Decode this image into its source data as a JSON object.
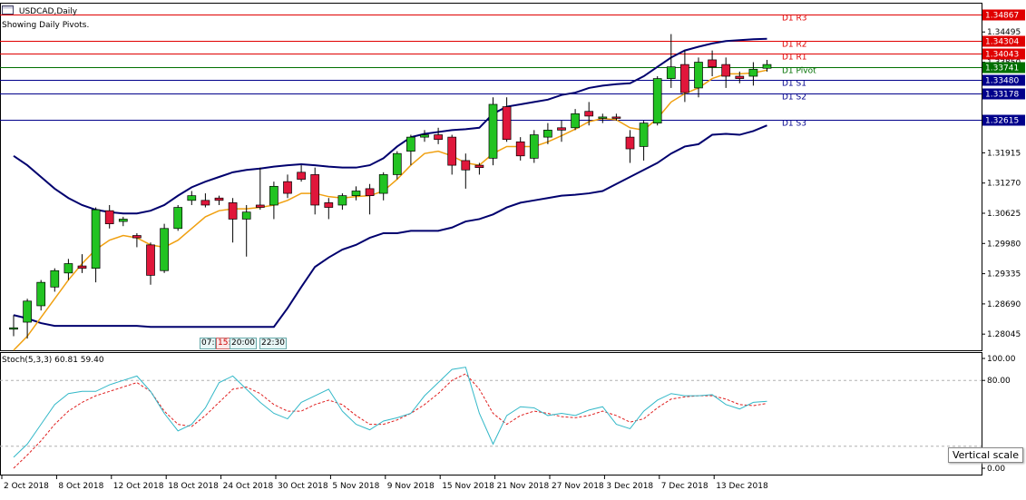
{
  "window": {
    "title": "USDCAD,Daily",
    "subtitle": "Showing Daily Pivots.",
    "icon": "chart-window-icon"
  },
  "stochastic": {
    "label": "Stoch(5,3,3) 60.81 59.40",
    "ticks": [
      "100.00",
      "80.00",
      "0.00"
    ],
    "levels": [
      80,
      20
    ]
  },
  "tooltip": {
    "vertical_scale": "Vertical scale"
  },
  "time_boxes": [
    "07:",
    "15:",
    "20:00",
    "22:30"
  ],
  "pivots": [
    {
      "label": "D1 R3",
      "value": 1.34867,
      "price_label": "1.34867",
      "color": "#e00000"
    },
    {
      "label": "D1 R2",
      "value": 1.34304,
      "price_label": "1.34304",
      "color": "#e00000"
    },
    {
      "label": "D1 R1",
      "value": 1.34043,
      "price_label": "1.34043",
      "color": "#e00000"
    },
    {
      "label": "D1 Pivot",
      "value": 1.33741,
      "price_label": "1.33741",
      "color": "#007000"
    },
    {
      "label": "D1 S1",
      "value": 1.3348,
      "price_label": "1.33480",
      "color": "#00008b"
    },
    {
      "label": "D1 S2",
      "value": 1.33178,
      "price_label": "1.33178",
      "color": "#00008b"
    },
    {
      "label": "D1 S3",
      "value": 1.32615,
      "price_label": "1.32615",
      "color": "#00008b"
    }
  ],
  "colors": {
    "bull": "#22c322",
    "bear": "#e0173b",
    "band": "#00006e",
    "ma": "#f0a010",
    "stoch_main": "#33b8c8",
    "stoch_signal": "#e02020"
  },
  "chart_data": [
    {
      "type": "candlestick",
      "title": "USDCAD,Daily",
      "ylim": [
        1.277,
        1.351
      ],
      "y_ticks": [
        "1.34495",
        "1.33850",
        "1.33205",
        "1.32560",
        "1.31915",
        "1.31270",
        "1.30625",
        "1.29980",
        "1.29335",
        "1.28690",
        "1.28045"
      ],
      "x_ticks": [
        "2 Oct 2018",
        "8 Oct 2018",
        "12 Oct 2018",
        "18 Oct 2018",
        "24 Oct 2018",
        "30 Oct 2018",
        "5 Nov 2018",
        "9 Nov 2018",
        "15 Nov 2018",
        "21 Nov 2018",
        "27 Nov 2018",
        "3 Dec 2018",
        "7 Dec 2018",
        "13 Dec 2018"
      ],
      "x_tick_index": [
        0,
        4,
        8,
        12,
        16,
        20,
        24,
        28,
        32,
        36,
        40,
        44,
        48,
        52
      ],
      "ohlc": [
        [
          1.2815,
          1.2845,
          1.28,
          1.2818
        ],
        [
          1.283,
          1.288,
          1.2795,
          1.2875
        ],
        [
          1.2865,
          1.292,
          1.2855,
          1.2915
        ],
        [
          1.2905,
          1.2945,
          1.2895,
          1.294
        ],
        [
          1.2935,
          1.2965,
          1.292,
          1.2955
        ],
        [
          1.295,
          1.2975,
          1.2935,
          1.2945
        ],
        [
          1.2945,
          1.3075,
          1.2915,
          1.307
        ],
        [
          1.3068,
          1.308,
          1.303,
          1.304
        ],
        [
          1.3045,
          1.3055,
          1.3035,
          1.305
        ],
        [
          1.3015,
          1.302,
          1.299,
          1.301
        ],
        [
          1.2995,
          1.3,
          1.291,
          1.293
        ],
        [
          1.294,
          1.304,
          1.2935,
          1.303
        ],
        [
          1.303,
          1.308,
          1.3025,
          1.3075
        ],
        [
          1.309,
          1.311,
          1.308,
          1.31
        ],
        [
          1.309,
          1.3105,
          1.3075,
          1.308
        ],
        [
          1.3095,
          1.31,
          1.308,
          1.309
        ],
        [
          1.3085,
          1.3095,
          1.3,
          1.305
        ],
        [
          1.305,
          1.308,
          1.297,
          1.3065
        ],
        [
          1.308,
          1.316,
          1.307,
          1.3075
        ],
        [
          1.308,
          1.313,
          1.305,
          1.312
        ],
        [
          1.313,
          1.3145,
          1.3095,
          1.3105
        ],
        [
          1.315,
          1.3165,
          1.313,
          1.3135
        ],
        [
          1.3145,
          1.316,
          1.306,
          1.308
        ],
        [
          1.3085,
          1.3095,
          1.305,
          1.3075
        ],
        [
          1.308,
          1.3105,
          1.307,
          1.31
        ],
        [
          1.31,
          1.312,
          1.309,
          1.311
        ],
        [
          1.3115,
          1.3125,
          1.306,
          1.31
        ],
        [
          1.3105,
          1.315,
          1.309,
          1.3145
        ],
        [
          1.3145,
          1.3195,
          1.3135,
          1.319
        ],
        [
          1.3195,
          1.323,
          1.3165,
          1.3225
        ],
        [
          1.3225,
          1.324,
          1.3215,
          1.323
        ],
        [
          1.323,
          1.3245,
          1.321,
          1.322
        ],
        [
          1.3225,
          1.323,
          1.3145,
          1.3165
        ],
        [
          1.3175,
          1.319,
          1.3115,
          1.3155
        ],
        [
          1.3165,
          1.317,
          1.3145,
          1.316
        ],
        [
          1.318,
          1.331,
          1.3165,
          1.3295
        ],
        [
          1.329,
          1.331,
          1.3215,
          1.322
        ],
        [
          1.3215,
          1.3225,
          1.3175,
          1.3185
        ],
        [
          1.318,
          1.324,
          1.317,
          1.323
        ],
        [
          1.3225,
          1.3255,
          1.321,
          1.324
        ],
        [
          1.3245,
          1.326,
          1.3215,
          1.324
        ],
        [
          1.3245,
          1.3285,
          1.324,
          1.3275
        ],
        [
          1.328,
          1.33,
          1.325,
          1.327
        ],
        [
          1.3265,
          1.3275,
          1.3255,
          1.3268
        ],
        [
          1.3268,
          1.3275,
          1.326,
          1.3265
        ],
        [
          1.3225,
          1.324,
          1.317,
          1.32
        ],
        [
          1.3205,
          1.326,
          1.3175,
          1.3255
        ],
        [
          1.3255,
          1.3355,
          1.325,
          1.335
        ],
        [
          1.335,
          1.3445,
          1.333,
          1.3375
        ],
        [
          1.338,
          1.341,
          1.33,
          1.332
        ],
        [
          1.333,
          1.3395,
          1.331,
          1.3385
        ],
        [
          1.339,
          1.341,
          1.3355,
          1.3375
        ],
        [
          1.338,
          1.3395,
          1.333,
          1.3355
        ],
        [
          1.3355,
          1.3365,
          1.334,
          1.335
        ],
        [
          1.3355,
          1.3385,
          1.3335,
          1.337
        ],
        [
          1.3372,
          1.339,
          1.3365,
          1.338
        ]
      ],
      "ma": [
        1.276,
        1.28,
        1.284,
        1.288,
        1.292,
        1.2955,
        1.2985,
        1.3005,
        1.3015,
        1.301,
        1.2995,
        1.299,
        1.3005,
        1.303,
        1.3055,
        1.3068,
        1.3072,
        1.3072,
        1.3075,
        1.308,
        1.309,
        1.3105,
        1.3105,
        1.3098,
        1.3095,
        1.3098,
        1.31,
        1.311,
        1.3135,
        1.3165,
        1.319,
        1.3195,
        1.3185,
        1.317,
        1.3165,
        1.319,
        1.3205,
        1.3205,
        1.3205,
        1.3215,
        1.3228,
        1.3242,
        1.3258,
        1.3265,
        1.3262,
        1.3245,
        1.324,
        1.3265,
        1.33,
        1.3318,
        1.333,
        1.335,
        1.336,
        1.336,
        1.3362,
        1.3368
      ],
      "upper_band": [
        1.3185,
        1.3165,
        1.314,
        1.3115,
        1.3095,
        1.308,
        1.307,
        1.3065,
        1.3062,
        1.3062,
        1.3068,
        1.308,
        1.31,
        1.3118,
        1.313,
        1.314,
        1.315,
        1.3155,
        1.3158,
        1.3162,
        1.3165,
        1.3167,
        1.3165,
        1.3162,
        1.316,
        1.316,
        1.3165,
        1.318,
        1.3205,
        1.3225,
        1.3232,
        1.3236,
        1.324,
        1.3242,
        1.3245,
        1.3275,
        1.329,
        1.3295,
        1.33,
        1.3305,
        1.3315,
        1.332,
        1.333,
        1.3335,
        1.3338,
        1.334,
        1.3355,
        1.3375,
        1.3395,
        1.341,
        1.3418,
        1.3425,
        1.343,
        1.3432,
        1.3434,
        1.3435
      ],
      "lower_band": [
        1.2845,
        1.2838,
        1.2828,
        1.2822,
        1.2822,
        1.2822,
        1.2822,
        1.2822,
        1.2822,
        1.2822,
        1.282,
        1.282,
        1.282,
        1.282,
        1.282,
        1.282,
        1.282,
        1.282,
        1.282,
        1.282,
        1.286,
        1.2905,
        1.2948,
        1.2968,
        1.2985,
        1.2995,
        1.301,
        1.302,
        1.302,
        1.3025,
        1.3025,
        1.3025,
        1.3032,
        1.3045,
        1.305,
        1.306,
        1.3075,
        1.3085,
        1.309,
        1.3095,
        1.31,
        1.3102,
        1.3105,
        1.311,
        1.3125,
        1.314,
        1.3155,
        1.317,
        1.319,
        1.3205,
        1.321,
        1.323,
        1.3232,
        1.323,
        1.3238,
        1.325
      ],
      "x_label_index_origin": 0
    },
    {
      "type": "line",
      "title": "Stoch(5,3,3) 60.81 59.40",
      "ylim": [
        0,
        100
      ],
      "series": [
        {
          "name": "main",
          "values": [
            10,
            22,
            40,
            58,
            68,
            70,
            70,
            76,
            80,
            84,
            70,
            50,
            34,
            40,
            55,
            78,
            84,
            72,
            60,
            50,
            45,
            60,
            66,
            72,
            52,
            40,
            35,
            43,
            46,
            50,
            66,
            78,
            90,
            92,
            50,
            22,
            48,
            56,
            55,
            48,
            50,
            48,
            53,
            56,
            40,
            36,
            52,
            62,
            68,
            66,
            66,
            67,
            58,
            54,
            60,
            61
          ]
        },
        {
          "name": "signal",
          "values": [
            0,
            12,
            25,
            40,
            52,
            60,
            66,
            70,
            74,
            78,
            70,
            52,
            40,
            38,
            48,
            60,
            72,
            74,
            68,
            58,
            52,
            52,
            58,
            62,
            58,
            48,
            40,
            40,
            44,
            50,
            58,
            68,
            80,
            86,
            72,
            50,
            40,
            48,
            52,
            50,
            47,
            46,
            48,
            52,
            48,
            42,
            45,
            55,
            63,
            65,
            66,
            66,
            63,
            58,
            57,
            59
          ]
        }
      ]
    }
  ]
}
